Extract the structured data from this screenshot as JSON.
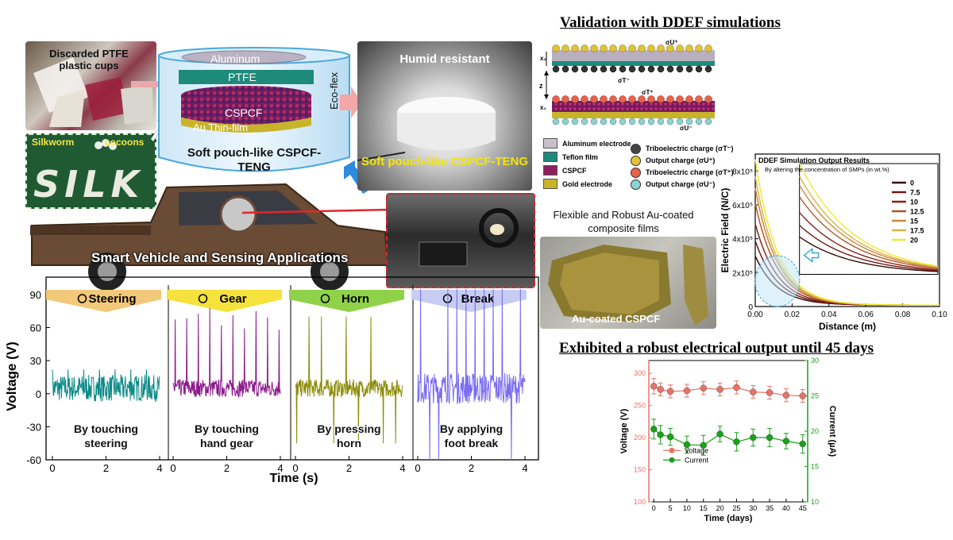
{
  "headings": {
    "validation": "Validation with DDEF simulations",
    "robust": "Exhibited a robust electrical output until 45 days"
  },
  "top_left": {
    "discarded": "Discarded PTFE plastic cups",
    "silkworm": "Silkworm",
    "cocoons": "cocoons",
    "silk_word": "SILK",
    "layers": {
      "aluminum": "Aluminum",
      "ptfe": "PTFE",
      "cspcf": "CSPCF",
      "au": "Au Thin-film",
      "ecoflex": "Eco-flex"
    },
    "device_name": "Soft pouch-like CSPCF-TENG",
    "humid": "Humid resistant",
    "photo_device_name": "Soft pouch-like CSPCF-TENG",
    "smart_vehicle": "Smart Vehicle and Sensing Applications"
  },
  "voltage_chart": {
    "ylabel": "Voltage (V)",
    "xlabel": "Time (s)",
    "yticks": [
      "90",
      "60",
      "30",
      "0",
      "-30",
      "-60"
    ],
    "xticks": [
      "0",
      "2",
      "4"
    ],
    "panels": [
      {
        "name": "Steering",
        "caption": "By touching steering",
        "color": "#0b8a87",
        "arrow": "#f2c879"
      },
      {
        "name": "Gear",
        "caption": "By touching hand gear",
        "color": "#8c1a8c",
        "arrow": "#f5e23c"
      },
      {
        "name": "Horn",
        "caption": "By pressing horn",
        "color": "#8c8c0a",
        "arrow": "#8fd24a"
      },
      {
        "name": "Break",
        "caption": "By applying foot break",
        "color": "#7b6cf0",
        "arrow": "#c7cdf2"
      }
    ]
  },
  "ddef": {
    "legend": [
      {
        "label": "Aluminum electrode",
        "color": "#c9c0cc"
      },
      {
        "label": "Teflon film",
        "color": "#1e8a7a"
      },
      {
        "label": "CSPCF",
        "color": "#8c1f5e"
      },
      {
        "label": "Gold electrode",
        "color": "#c8b42a"
      }
    ],
    "charges": [
      {
        "label": "Triboelectric charge (σT⁻)",
        "color": "#444444"
      },
      {
        "label": "Output charge (σU⁺)",
        "color": "#e0c23a"
      },
      {
        "label": "Triboelectric charge (σT⁺)",
        "color": "#e8614a"
      },
      {
        "label": "Output charge (σU⁻)",
        "color": "#8fd0d4"
      }
    ],
    "symbols": {
      "top": "σU⁺",
      "mid": "σT⁻",
      "mid2": "σT⁺",
      "bottom": "σU⁻",
      "x1": "x₁",
      "x2": "x₂",
      "z": "z"
    }
  },
  "au_film": {
    "title": "Flexible and Robust Au-coated composite films",
    "label": "Au-coated CSPCF"
  },
  "efield_chart": {
    "type": "line",
    "title": "DDEF Simulation Output Results",
    "subtitle": "By altering the concentration of SMPs (in wt.%)",
    "xlabel": "Distance (m)",
    "ylabel": "Electric Field (N/C)",
    "xticks": [
      "0.00",
      "0.02",
      "0.04",
      "0.06",
      "0.08",
      "0.10"
    ],
    "yticks": [
      "0",
      "2x10⁵",
      "4x10⁵",
      "6x10⁵",
      "8x10⁵"
    ],
    "xlim": [
      0,
      0.1
    ],
    "ylim": [
      0,
      900000
    ],
    "series": [
      {
        "name": "0",
        "color": "#3a0a0a",
        "e0": 290000
      },
      {
        "name": "7.5",
        "color": "#6e1a12",
        "e0": 380000
      },
      {
        "name": "10",
        "color": "#8c2418",
        "e0": 480000
      },
      {
        "name": "12.5",
        "color": "#b4552a",
        "e0": 600000
      },
      {
        "name": "15",
        "color": "#c98a3a",
        "e0": 690000
      },
      {
        "name": "17.5",
        "color": "#d8b447",
        "e0": 760000
      },
      {
        "name": "20",
        "color": "#eeea35",
        "e0": 860000
      }
    ]
  },
  "stability_chart": {
    "type": "line",
    "xlabel": "Time (days)",
    "ylabel_left": "Voltage (V)",
    "ylabel_right": "Current (µA)",
    "x": [
      0,
      2,
      5,
      10,
      15,
      20,
      25,
      30,
      35,
      40,
      45
    ],
    "xticks": [
      "0",
      "5",
      "10",
      "15",
      "20",
      "25",
      "30",
      "35",
      "40",
      "45"
    ],
    "yticks_left": [
      "100",
      "150",
      "200",
      "250",
      "300"
    ],
    "yticks_right": [
      "10",
      "15",
      "20",
      "25",
      "30"
    ],
    "ylim_left": [
      100,
      320
    ],
    "ylim_right": [
      10,
      30
    ],
    "series": [
      {
        "name": "Voltage",
        "axis": "left",
        "color": "#e8736a",
        "values": [
          280,
          275,
          272,
          273,
          277,
          275,
          278,
          271,
          270,
          266,
          265
        ],
        "err": [
          12,
          10,
          10,
          10,
          10,
          10,
          10,
          10,
          10,
          10,
          10
        ]
      },
      {
        "name": "Current",
        "axis": "right",
        "color": "#1aa11a",
        "values": [
          20.3,
          19.5,
          19.2,
          18.1,
          18.0,
          19.6,
          18.5,
          19.1,
          19.1,
          18.6,
          18.2
        ],
        "err": [
          1.4,
          1.3,
          1.2,
          1.2,
          1.4,
          1.1,
          1.3,
          1.2,
          1.3,
          1.1,
          1.3
        ]
      }
    ]
  }
}
